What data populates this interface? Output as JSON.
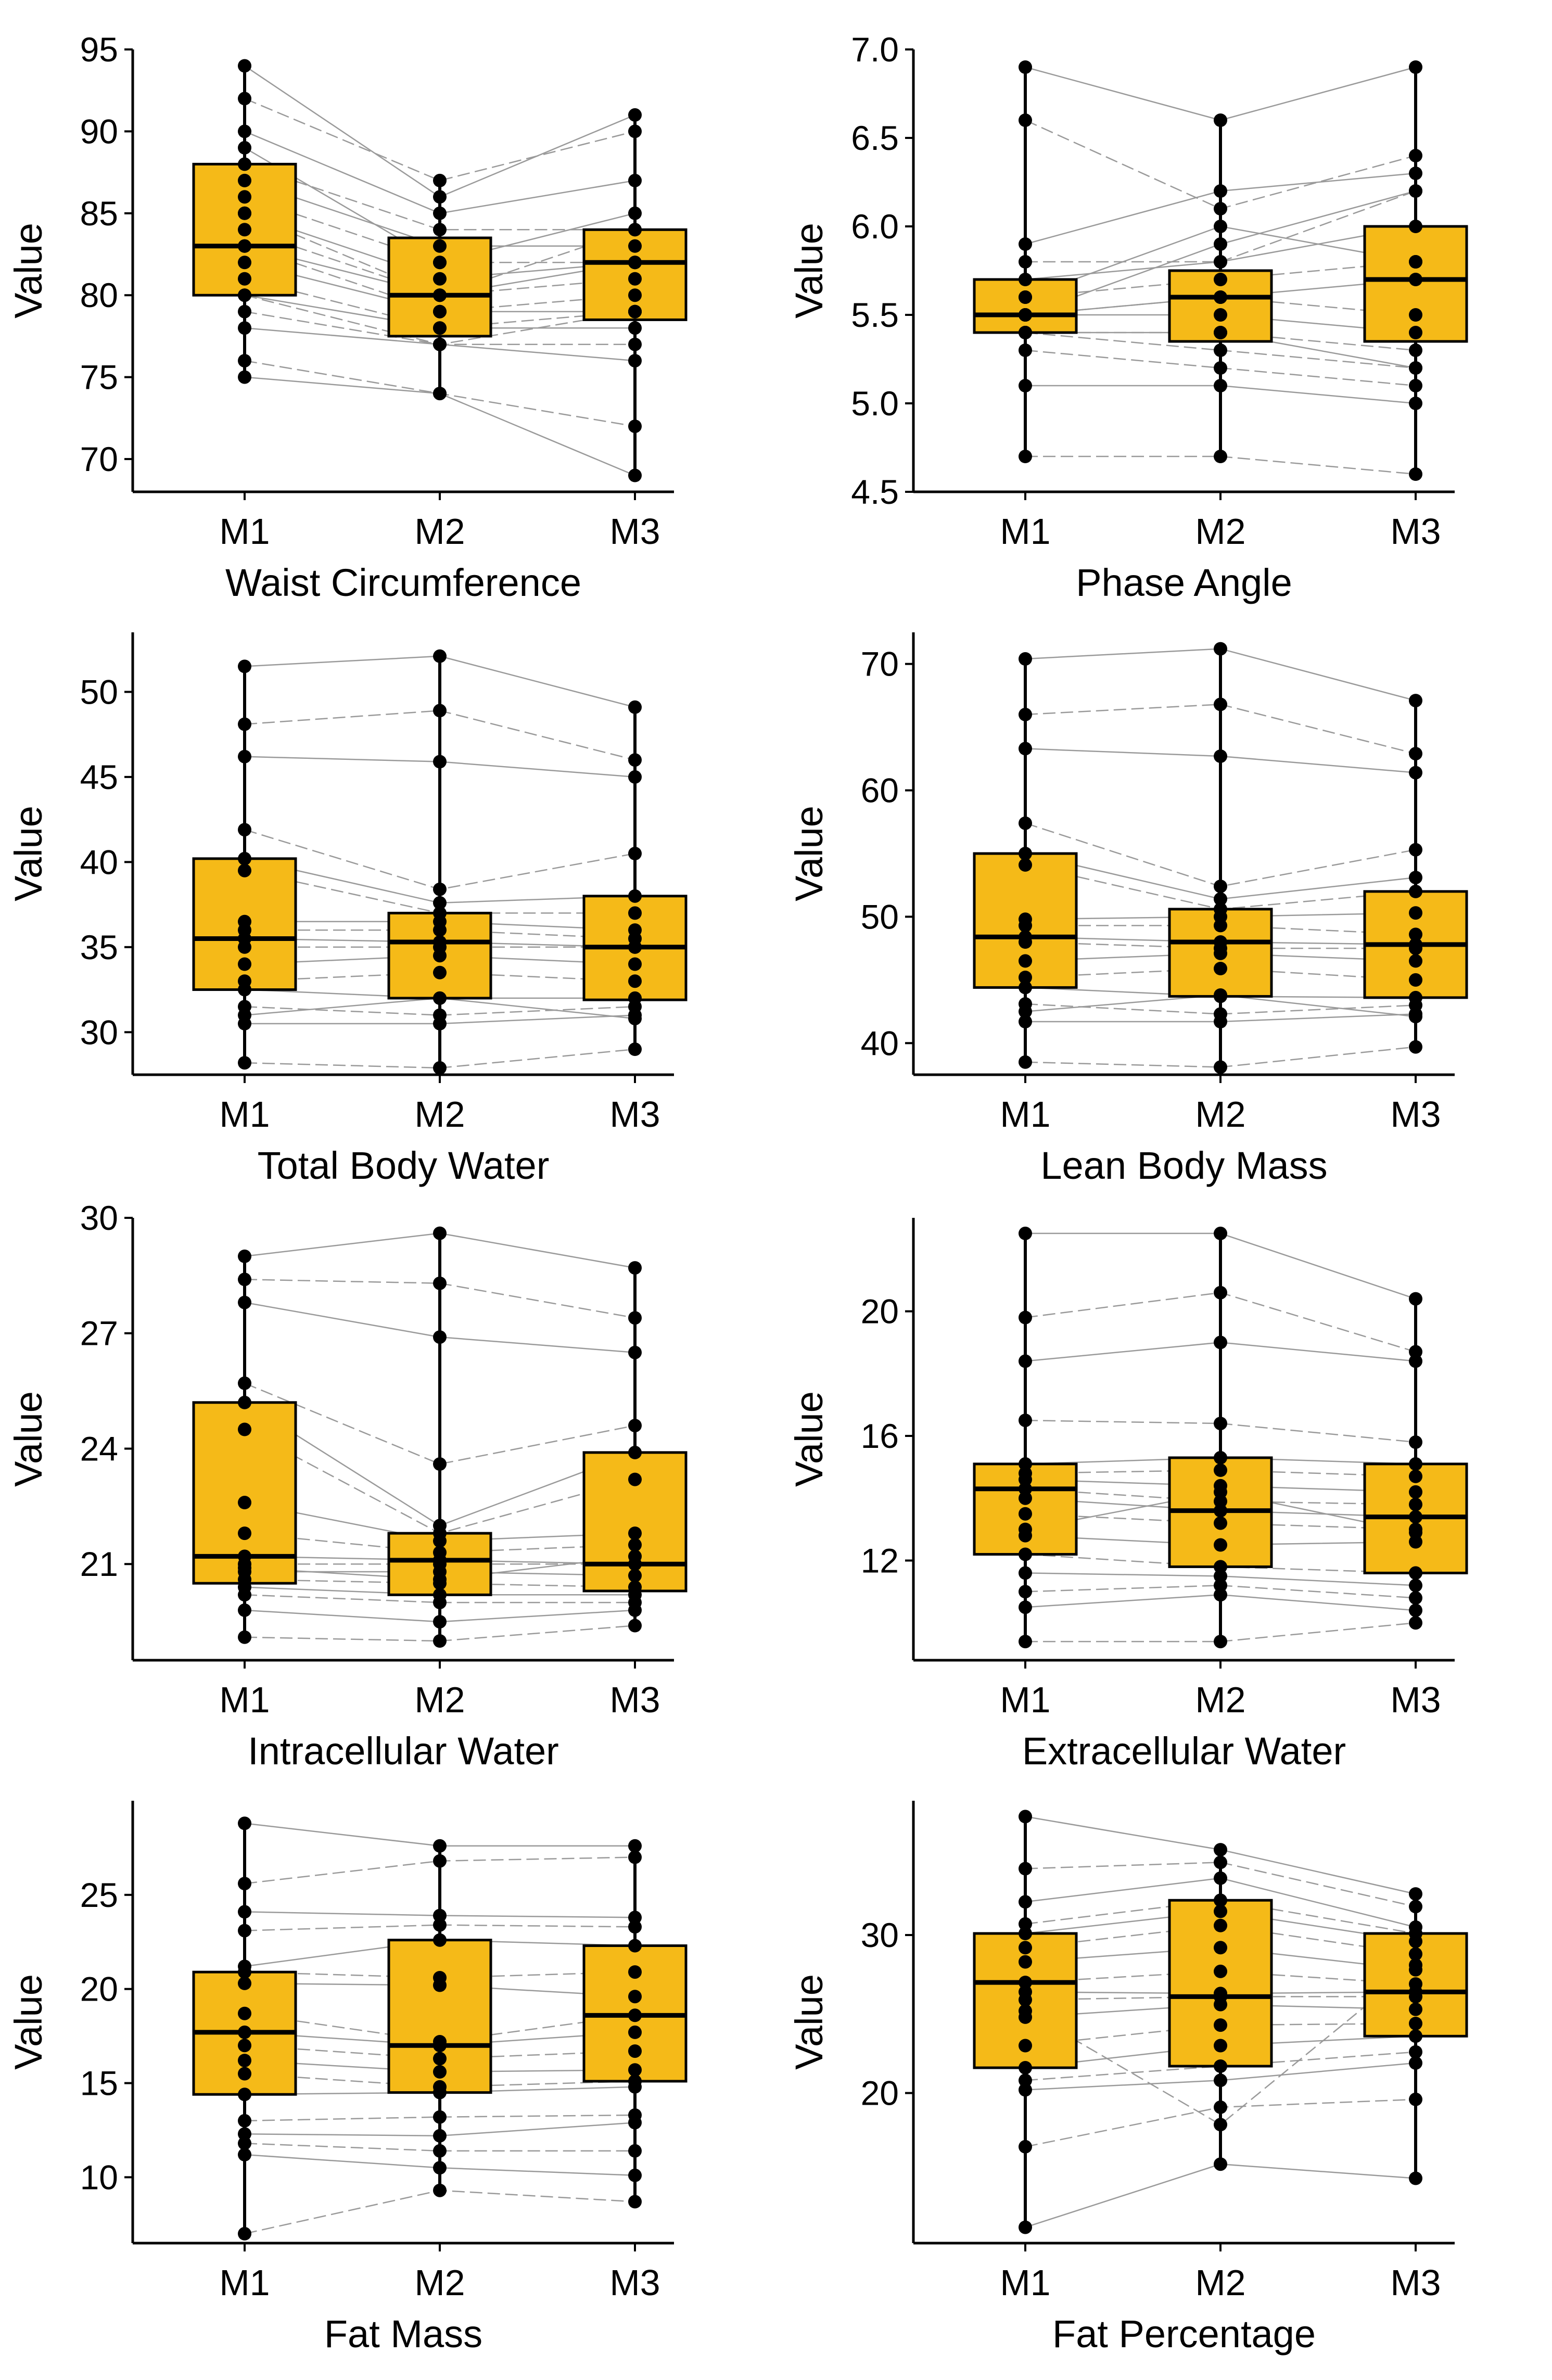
{
  "style": {
    "box_fill": "#F5BA18",
    "point_color": "#000000",
    "trace_color": "#9a9a9a"
  },
  "chart_data": [
    {
      "type": "box",
      "xlabel": "Waist Circumference",
      "ylabel": "Value",
      "categories": [
        "M1",
        "M2",
        "M3"
      ],
      "ylim": [
        68,
        95
      ],
      "yticks": [
        70,
        75,
        80,
        85,
        90,
        95
      ],
      "box_stats": [
        {
          "min": 75,
          "q1": 80,
          "median": 83,
          "q3": 88,
          "max": 94
        },
        {
          "min": 74,
          "q1": 77.5,
          "median": 80,
          "q3": 83.5,
          "max": 87
        },
        {
          "min": 69,
          "q1": 78.5,
          "median": 82,
          "q3": 84,
          "max": 91
        }
      ],
      "subjects": [
        [
          94,
          86,
          91
        ],
        [
          92,
          87,
          90
        ],
        [
          90,
          85,
          87
        ],
        [
          88,
          84,
          84
        ],
        [
          87,
          83,
          83
        ],
        [
          86,
          82,
          82
        ],
        [
          85,
          81,
          82
        ],
        [
          84,
          80,
          81
        ],
        [
          83,
          80,
          82
        ],
        [
          83,
          79,
          80
        ],
        [
          82,
          79,
          79
        ],
        [
          81,
          78,
          79
        ],
        [
          80,
          78,
          78
        ],
        [
          79,
          77,
          77
        ],
        [
          78,
          77,
          76
        ],
        [
          76,
          74,
          72
        ],
        [
          75,
          74,
          69
        ],
        [
          85,
          80,
          84
        ],
        [
          89,
          82,
          85
        ],
        [
          80,
          77,
          79
        ]
      ]
    },
    {
      "type": "box",
      "xlabel": "Phase Angle",
      "ylabel": "Value",
      "categories": [
        "M1",
        "M2",
        "M3"
      ],
      "ylim": [
        4.5,
        7.0
      ],
      "yticks": [
        4.5,
        5.0,
        5.5,
        6.0,
        6.5,
        7.0
      ],
      "box_stats": [
        {
          "min": 4.7,
          "q1": 5.4,
          "median": 5.5,
          "q3": 5.7,
          "max": 6.9
        },
        {
          "min": 4.7,
          "q1": 5.35,
          "median": 5.6,
          "q3": 5.75,
          "max": 6.6
        },
        {
          "min": 4.6,
          "q1": 5.35,
          "median": 5.7,
          "q3": 6.0,
          "max": 6.9
        }
      ],
      "subjects": [
        [
          6.9,
          6.6,
          6.9
        ],
        [
          6.6,
          6.1,
          6.4
        ],
        [
          5.9,
          6.2,
          6.3
        ],
        [
          5.8,
          5.8,
          6.2
        ],
        [
          5.7,
          5.8,
          6.0
        ],
        [
          5.6,
          5.7,
          5.8
        ],
        [
          5.5,
          5.6,
          5.7
        ],
        [
          5.5,
          5.6,
          5.5
        ],
        [
          5.5,
          5.5,
          5.4
        ],
        [
          5.4,
          5.4,
          5.3
        ],
        [
          5.4,
          5.4,
          5.2
        ],
        [
          5.3,
          5.2,
          5.1
        ],
        [
          5.1,
          5.1,
          5.0
        ],
        [
          4.7,
          4.7,
          4.6
        ],
        [
          5.6,
          6.0,
          5.8
        ],
        [
          5.4,
          5.3,
          5.2
        ],
        [
          5.5,
          5.9,
          6.2
        ]
      ]
    },
    {
      "type": "box",
      "xlabel": "Total Body Water",
      "ylabel": "Value",
      "categories": [
        "M1",
        "M2",
        "M3"
      ],
      "ylim": [
        27.5,
        53.5
      ],
      "yticks": [
        30,
        35,
        40,
        45,
        50
      ],
      "box_stats": [
        {
          "min": 28.2,
          "q1": 32.5,
          "median": 35.5,
          "q3": 40.2,
          "max": 51.5
        },
        {
          "min": 27.9,
          "q1": 32,
          "median": 35.3,
          "q3": 37,
          "max": 52.1
        },
        {
          "min": 29,
          "q1": 31.9,
          "median": 35,
          "q3": 38,
          "max": 49.1
        }
      ],
      "subjects": [
        [
          51.5,
          52.1,
          49.1
        ],
        [
          48.1,
          48.9,
          46
        ],
        [
          46.2,
          45.9,
          45
        ],
        [
          41.9,
          38.4,
          40.5
        ],
        [
          40.2,
          37.6,
          38
        ],
        [
          39.5,
          37,
          37
        ],
        [
          36.5,
          36.5,
          36
        ],
        [
          36,
          36,
          35.5
        ],
        [
          35.5,
          35.3,
          35
        ],
        [
          35,
          35,
          35
        ],
        [
          34,
          34.5,
          34
        ],
        [
          33,
          33.5,
          33
        ],
        [
          32.5,
          32,
          32
        ],
        [
          31.5,
          31,
          31.5
        ],
        [
          30.5,
          30.5,
          31
        ],
        [
          28.2,
          27.9,
          29
        ],
        [
          31,
          32,
          30.8
        ]
      ]
    },
    {
      "type": "box",
      "xlabel": "Lean Body Mass",
      "ylabel": "Value",
      "categories": [
        "M1",
        "M2",
        "M3"
      ],
      "ylim": [
        37.5,
        72.5
      ],
      "yticks": [
        40,
        50,
        60,
        70
      ],
      "box_stats": [
        {
          "min": 38.5,
          "q1": 44.4,
          "median": 48.4,
          "q3": 55,
          "max": 70.4
        },
        {
          "min": 38.1,
          "q1": 43.7,
          "median": 48,
          "q3": 50.6,
          "max": 71.2
        },
        {
          "min": 39.7,
          "q1": 43.6,
          "median": 47.8,
          "q3": 52,
          "max": 67.1
        }
      ],
      "subjects": [
        [
          70.4,
          71.2,
          67.1
        ],
        [
          66,
          66.8,
          62.9
        ],
        [
          63.3,
          62.7,
          61.4
        ],
        [
          57.4,
          52.4,
          55.3
        ],
        [
          55,
          51.4,
          53.1
        ],
        [
          54.1,
          50.6,
          52
        ],
        [
          49.8,
          50,
          50.3
        ],
        [
          49.3,
          49.3,
          48.6
        ],
        [
          48.4,
          48,
          47.8
        ],
        [
          48,
          47.5,
          47.5
        ],
        [
          46.5,
          47.1,
          46.5
        ],
        [
          45.2,
          45.9,
          45
        ],
        [
          44.4,
          43.7,
          43.6
        ],
        [
          43.1,
          42.3,
          43
        ],
        [
          41.7,
          41.7,
          42.3
        ],
        [
          38.5,
          38.1,
          39.7
        ],
        [
          42.5,
          43.8,
          42.1
        ]
      ]
    },
    {
      "type": "box",
      "xlabel": "Intracellular Water",
      "ylabel": "Value",
      "categories": [
        "M1",
        "M2",
        "M3"
      ],
      "ylim": [
        18.5,
        30
      ],
      "yticks": [
        21,
        24,
        27,
        30
      ],
      "box_stats": [
        {
          "min": 19.1,
          "q1": 20.5,
          "median": 21.2,
          "q3": 25.2,
          "max": 29
        },
        {
          "min": 19,
          "q1": 20.2,
          "median": 21.1,
          "q3": 21.8,
          "max": 29.6
        },
        {
          "min": 19.4,
          "q1": 20.3,
          "median": 21,
          "q3": 23.9,
          "max": 28.7
        }
      ],
      "subjects": [
        [
          29,
          29.6,
          28.7
        ],
        [
          28.4,
          28.3,
          27.4
        ],
        [
          27.8,
          26.9,
          26.5
        ],
        [
          25.7,
          23.6,
          24.6
        ],
        [
          25.2,
          22,
          23.9
        ],
        [
          24.5,
          21.8,
          23.2
        ],
        [
          22.6,
          21.6,
          21.8
        ],
        [
          21.8,
          21.3,
          21.5
        ],
        [
          21.2,
          21.1,
          21
        ],
        [
          21,
          21,
          21
        ],
        [
          20.8,
          20.8,
          20.7
        ],
        [
          20.6,
          20.5,
          20.4
        ],
        [
          20.4,
          20.2,
          20.2
        ],
        [
          20.2,
          20,
          20
        ],
        [
          19.8,
          19.5,
          19.8
        ],
        [
          19.1,
          19,
          19.4
        ],
        [
          20.9,
          20.6,
          21.2
        ]
      ]
    },
    {
      "type": "box",
      "xlabel": "Extracellular Water",
      "ylabel": "Value",
      "categories": [
        "M1",
        "M2",
        "M3"
      ],
      "ylim": [
        8.8,
        23
      ],
      "yticks": [
        12,
        16,
        20
      ],
      "box_stats": [
        {
          "min": 9.4,
          "q1": 12.2,
          "median": 14.3,
          "q3": 15.1,
          "max": 22.5
        },
        {
          "min": 9.4,
          "q1": 11.8,
          "median": 13.6,
          "q3": 15.3,
          "max": 22.5
        },
        {
          "min": 10,
          "q1": 11.6,
          "median": 13.4,
          "q3": 15.1,
          "max": 20.4
        }
      ],
      "subjects": [
        [
          22.5,
          22.5,
          20.4
        ],
        [
          19.8,
          20.6,
          18.7
        ],
        [
          18.4,
          19,
          18.4
        ],
        [
          16.5,
          16.4,
          15.8
        ],
        [
          15.1,
          15.3,
          15.1
        ],
        [
          14.8,
          14.9,
          14.7
        ],
        [
          14.6,
          14.4,
          14.2
        ],
        [
          14.3,
          13.9,
          13.8
        ],
        [
          14,
          13.6,
          13.4
        ],
        [
          13.5,
          13.2,
          13
        ],
        [
          12.8,
          12.5,
          12.6
        ],
        [
          12.2,
          11.8,
          11.6
        ],
        [
          11.6,
          11.5,
          11.2
        ],
        [
          11,
          11.2,
          10.8
        ],
        [
          10.5,
          10.9,
          10.4
        ],
        [
          9.4,
          9.4,
          10
        ],
        [
          13,
          14.2,
          12.9
        ]
      ]
    },
    {
      "type": "box",
      "xlabel": "Fat Mass",
      "ylabel": "Value",
      "categories": [
        "M1",
        "M2",
        "M3"
      ],
      "ylim": [
        6.5,
        30
      ],
      "yticks": [
        10,
        15,
        20,
        25
      ],
      "box_stats": [
        {
          "min": 7,
          "q1": 14.4,
          "median": 17.7,
          "q3": 20.9,
          "max": 28.8
        },
        {
          "min": 9.3,
          "q1": 14.5,
          "median": 17,
          "q3": 22.6,
          "max": 27.6
        },
        {
          "min": 8.7,
          "q1": 15.1,
          "median": 18.6,
          "q3": 22.3,
          "max": 27.6
        }
      ],
      "subjects": [
        [
          28.8,
          27.6,
          27.6
        ],
        [
          25.6,
          26.8,
          27
        ],
        [
          24.1,
          23.9,
          23.8
        ],
        [
          23.1,
          23.4,
          23.3
        ],
        [
          21.2,
          22.6,
          22.3
        ],
        [
          20.9,
          20.6,
          20.9
        ],
        [
          20.3,
          20.2,
          19.6
        ],
        [
          18.7,
          17.2,
          18.6
        ],
        [
          17.7,
          17,
          17.7
        ],
        [
          17,
          16.3,
          16.7
        ],
        [
          16.2,
          15.6,
          15.7
        ],
        [
          15.5,
          14.8,
          15.1
        ],
        [
          14.4,
          14.5,
          14.8
        ],
        [
          13,
          13.2,
          13.3
        ],
        [
          12.3,
          12.2,
          12.9
        ],
        [
          11.8,
          11.4,
          11.4
        ],
        [
          11.2,
          10.5,
          10.1
        ],
        [
          7,
          9.3,
          8.7
        ]
      ]
    },
    {
      "type": "box",
      "xlabel": "Fat Percentage",
      "ylabel": "Value",
      "categories": [
        "M1",
        "M2",
        "M3"
      ],
      "ylim": [
        10.5,
        38.5
      ],
      "yticks": [
        20,
        30
      ],
      "box_stats": [
        {
          "min": 11.5,
          "q1": 21.6,
          "median": 27,
          "q3": 30.1,
          "max": 37.5
        },
        {
          "min": 15.5,
          "q1": 21.7,
          "median": 26.1,
          "q3": 32.2,
          "max": 35.4
        },
        {
          "min": 14.6,
          "q1": 23.6,
          "median": 26.4,
          "q3": 30.1,
          "max": 32.6
        }
      ],
      "subjects": [
        [
          37.5,
          35.4,
          32.6
        ],
        [
          34.2,
          34.6,
          31.8
        ],
        [
          32.1,
          33.6,
          30.5
        ],
        [
          30.7,
          32.2,
          30.1
        ],
        [
          30.1,
          31.5,
          29.6
        ],
        [
          29.2,
          30.6,
          28.8
        ],
        [
          28.3,
          29.2,
          27.8
        ],
        [
          27,
          27.7,
          26.9
        ],
        [
          26.4,
          26.3,
          26.4
        ],
        [
          25.9,
          26.1,
          26.1
        ],
        [
          24.8,
          25.6,
          25.3
        ],
        [
          23,
          24.3,
          24.4
        ],
        [
          21.6,
          23,
          23.6
        ],
        [
          20.8,
          21.7,
          22.6
        ],
        [
          20.2,
          20.8,
          21.9
        ],
        [
          16.6,
          19.1,
          19.6
        ],
        [
          11.5,
          15.5,
          14.6
        ],
        [
          25.2,
          18,
          28.1
        ]
      ]
    }
  ]
}
